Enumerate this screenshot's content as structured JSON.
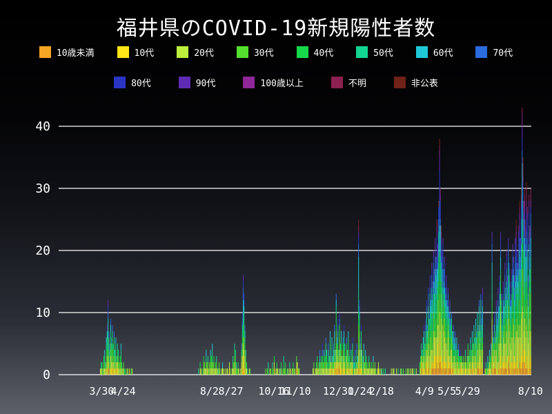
{
  "colors": {
    "background_top": "#000000",
    "background_bottom": "#5c6069",
    "grid": "#ffffff",
    "text": "#ffffff"
  },
  "chart_data": {
    "type": "bar",
    "stacked": true,
    "title": "福井県のCOVID-19新規陽性者数",
    "xlabel": "",
    "ylabel": "",
    "ylim": [
      0,
      45
    ],
    "y_ticks": [
      0,
      10,
      20,
      30,
      40
    ],
    "grid": true,
    "legend_position": "top",
    "n_days": 549,
    "x_ticks": [
      {
        "label": "3/30",
        "day": 50
      },
      {
        "label": "4/24",
        "day": 75
      },
      {
        "label": "8/2",
        "day": 175
      },
      {
        "label": "8/27",
        "day": 200
      },
      {
        "label": "10/16",
        "day": 250
      },
      {
        "label": "11/10",
        "day": 275
      },
      {
        "label": "12/30",
        "day": 325
      },
      {
        "label": "1/24",
        "day": 350
      },
      {
        "label": "2/18",
        "day": 375
      },
      {
        "label": "4/9",
        "day": 425
      },
      {
        "label": "5/5",
        "day": 451
      },
      {
        "label": "5/29",
        "day": 475
      },
      {
        "label": "8/10",
        "day": 548
      }
    ],
    "legend": [
      {
        "label": "10歳未満",
        "color": "#f5a623",
        "share_est": 0.045
      },
      {
        "label": "10代",
        "color": "#ffe417",
        "share_est": 0.085
      },
      {
        "label": "20代",
        "color": "#bcf03c",
        "share_est": 0.2
      },
      {
        "label": "30代",
        "color": "#55e02f",
        "share_est": 0.15
      },
      {
        "label": "40代",
        "color": "#16d94a",
        "share_est": 0.14
      },
      {
        "label": "50代",
        "color": "#12d592",
        "share_est": 0.125
      },
      {
        "label": "60代",
        "color": "#1fc8d7",
        "share_est": 0.09
      },
      {
        "label": "70代",
        "color": "#2a6bdf",
        "share_est": 0.07
      },
      {
        "label": "80代",
        "color": "#2b35c4",
        "share_est": 0.05
      },
      {
        "label": "90代",
        "color": "#5f2bb4",
        "share_est": 0.028
      },
      {
        "label": "100歳以上",
        "color": "#8f2699",
        "share_est": 0.005
      },
      {
        "label": "不明",
        "color": "#8c2050",
        "share_est": 0.008
      },
      {
        "label": "非公表",
        "color": "#702218",
        "share_est": 0.004
      }
    ],
    "daily_totals_spans": [
      {
        "start": 48,
        "values": [
          1,
          2,
          2,
          1,
          3,
          4,
          2,
          6,
          8,
          12,
          7,
          5,
          9,
          6,
          8,
          5,
          7,
          4,
          6,
          3,
          5,
          4,
          2,
          3,
          5,
          2,
          1,
          2,
          1,
          1,
          0,
          1,
          1,
          0,
          1,
          0,
          1,
          1
        ]
      },
      {
        "start": 162,
        "values": [
          1,
          0,
          2,
          1,
          0,
          1,
          3,
          2,
          1,
          4,
          2,
          3,
          1,
          2,
          4,
          3,
          5,
          2,
          3,
          1,
          2,
          3,
          1,
          1,
          2,
          1,
          0,
          1,
          2,
          1,
          0,
          1,
          0,
          1,
          1,
          0,
          2,
          1,
          0,
          1,
          3,
          2,
          5,
          4,
          2,
          1,
          2,
          1,
          0,
          1,
          5,
          10,
          16,
          13,
          8,
          4,
          2,
          1,
          0,
          1,
          1
        ]
      },
      {
        "start": 240,
        "values": [
          1,
          0,
          1,
          2,
          0,
          1,
          1,
          0,
          2,
          1,
          3,
          0,
          1,
          2,
          1,
          0,
          1,
          1,
          2,
          0,
          1,
          3,
          1,
          2,
          0,
          1,
          1,
          0,
          2,
          1,
          0,
          1,
          2,
          1,
          1,
          0,
          3,
          2,
          1,
          1
        ]
      },
      {
        "start": 295,
        "values": [
          1,
          2,
          0,
          1,
          2,
          3,
          1,
          2,
          4,
          2,
          3,
          5,
          2,
          4,
          3,
          6,
          4,
          2,
          5,
          3,
          7,
          4,
          6,
          3,
          5,
          8,
          4,
          13,
          6,
          9,
          4,
          10,
          5,
          7,
          3,
          6,
          8,
          5,
          3,
          6,
          4,
          7,
          3,
          5,
          2,
          4,
          6,
          3,
          2,
          4,
          2,
          5,
          3,
          25,
          12,
          6,
          8,
          4,
          3,
          5,
          2,
          4,
          3,
          2,
          1,
          3,
          2,
          1,
          2,
          1,
          3,
          1,
          2,
          1,
          0,
          1,
          2,
          1,
          0,
          1,
          1,
          0,
          1,
          0,
          1
        ]
      },
      {
        "start": 386,
        "values": [
          1,
          0,
          1,
          1,
          0,
          0,
          1,
          0,
          1,
          0,
          0,
          1,
          1,
          0,
          1,
          0,
          0,
          1,
          0,
          1,
          1,
          0,
          1,
          0,
          1,
          1,
          0,
          1,
          0,
          1
        ]
      },
      {
        "start": 419,
        "values": [
          2,
          3,
          5,
          4,
          6,
          8,
          5,
          9,
          12,
          8,
          14,
          10,
          16,
          12,
          18,
          15,
          20,
          17,
          22,
          19,
          25,
          21,
          28,
          38,
          30,
          24,
          20,
          22,
          17,
          19,
          14,
          16,
          12,
          14,
          10,
          12,
          9,
          10,
          7,
          8,
          6,
          7,
          5,
          6,
          4,
          5,
          3,
          4,
          3,
          3,
          2,
          3,
          2,
          4,
          2,
          3,
          5,
          3,
          4,
          6,
          4,
          7,
          5,
          8,
          6,
          9,
          7,
          10,
          8,
          12,
          9,
          13,
          10,
          14
        ]
      },
      {
        "start": 495,
        "values": [
          1,
          2,
          1,
          3,
          2,
          4,
          3,
          5,
          23,
          8,
          6,
          10,
          7,
          12,
          9,
          14,
          11,
          16,
          23,
          13,
          10,
          15,
          12,
          18,
          14,
          20,
          16,
          22,
          18,
          15,
          12,
          17,
          21,
          19,
          16,
          22,
          25,
          20,
          18,
          24,
          28,
          22,
          30,
          43,
          35,
          28,
          30,
          25,
          31,
          27,
          16,
          29,
          24,
          30
        ]
      }
    ]
  }
}
